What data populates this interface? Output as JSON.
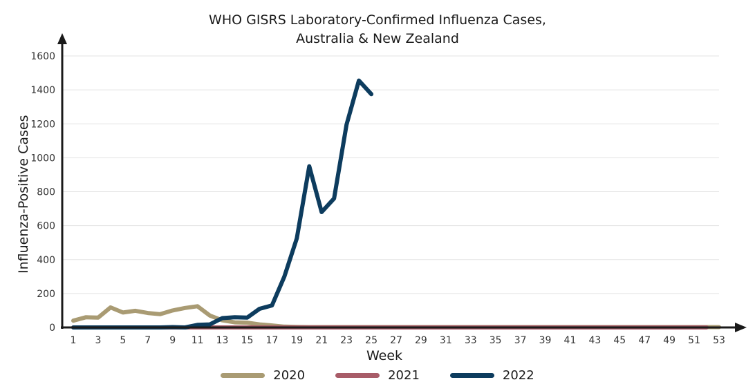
{
  "chart_data": {
    "type": "line",
    "title": "WHO GISRS Laboratory-Confirmed Influenza Cases,",
    "subtitle": "Australia & New Zealand",
    "xlabel": "Week",
    "ylabel": "Influenza-Positive Cases",
    "xlim": [
      1,
      53
    ],
    "ylim": [
      0,
      1600
    ],
    "yticks": [
      0,
      200,
      400,
      600,
      800,
      1000,
      1200,
      1400,
      1600
    ],
    "xticks": [
      1,
      3,
      5,
      7,
      9,
      11,
      13,
      15,
      17,
      19,
      21,
      23,
      25,
      27,
      29,
      31,
      33,
      35,
      37,
      39,
      41,
      43,
      45,
      47,
      49,
      51,
      53
    ],
    "grid": true,
    "legend_position": "bottom",
    "series": [
      {
        "name": "2020",
        "color": "#a99b73",
        "x": [
          1,
          2,
          3,
          4,
          5,
          6,
          7,
          8,
          9,
          10,
          11,
          12,
          13,
          14,
          15,
          16,
          17,
          18,
          19,
          20,
          21,
          22,
          23,
          24,
          25,
          26,
          27,
          28,
          29,
          30,
          31,
          32,
          33,
          34,
          35,
          36,
          37,
          38,
          39,
          40,
          41,
          42,
          43,
          44,
          45,
          46,
          47,
          48,
          49,
          50,
          51,
          52,
          53
        ],
        "values": [
          40,
          60,
          58,
          118,
          88,
          98,
          85,
          78,
          100,
          115,
          125,
          70,
          42,
          30,
          28,
          18,
          12,
          5,
          3,
          2,
          2,
          2,
          2,
          2,
          2,
          2,
          2,
          2,
          2,
          2,
          2,
          2,
          2,
          2,
          2,
          2,
          2,
          2,
          2,
          2,
          2,
          2,
          2,
          2,
          2,
          2,
          2,
          2,
          2,
          2,
          2,
          2,
          2
        ]
      },
      {
        "name": "2021",
        "color": "#a85c68",
        "x": [
          1,
          2,
          3,
          4,
          5,
          6,
          7,
          8,
          9,
          10,
          11,
          12,
          13,
          14,
          15,
          16,
          17,
          18,
          19,
          20,
          21,
          22,
          23,
          24,
          25,
          26,
          27,
          28,
          29,
          30,
          31,
          32,
          33,
          34,
          35,
          36,
          37,
          38,
          39,
          40,
          41,
          42,
          43,
          44,
          45,
          46,
          47,
          48,
          49,
          50,
          51,
          52
        ],
        "values": [
          0,
          0,
          0,
          0,
          0,
          0,
          0,
          0,
          0,
          0,
          0,
          0,
          0,
          0,
          0,
          0,
          0,
          0,
          0,
          0,
          0,
          0,
          0,
          0,
          0,
          0,
          0,
          0,
          0,
          0,
          0,
          0,
          0,
          0,
          0,
          0,
          0,
          0,
          0,
          0,
          0,
          0,
          0,
          0,
          0,
          0,
          0,
          0,
          0,
          0,
          0,
          0
        ]
      },
      {
        "name": "2022",
        "color": "#0d3c5e",
        "x": [
          1,
          2,
          3,
          4,
          5,
          6,
          7,
          8,
          9,
          10,
          11,
          12,
          13,
          14,
          15,
          16,
          17,
          18,
          19,
          20,
          21,
          22,
          23,
          24,
          25
        ],
        "values": [
          0,
          0,
          0,
          0,
          0,
          0,
          0,
          0,
          2,
          0,
          15,
          18,
          55,
          60,
          58,
          110,
          130,
          300,
          525,
          950,
          680,
          760,
          1195,
          1455,
          1375
        ]
      }
    ]
  }
}
